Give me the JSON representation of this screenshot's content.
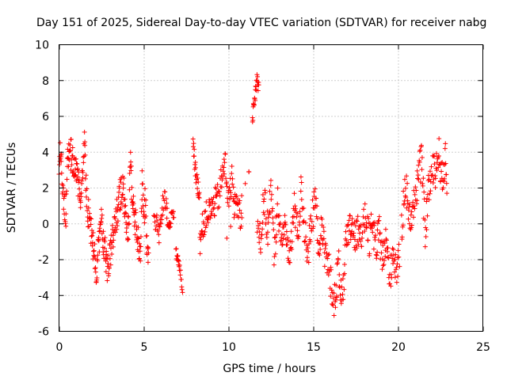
{
  "chart_data": {
    "type": "scatter",
    "title": "Day 151 of 2025, Sidereal Day-to-day VTEC variation (SDTVAR) for receiver nabg",
    "xlabel": "GPS time / hours",
    "ylabel": "SDTVAR / TECUs",
    "xlim": [
      0,
      25
    ],
    "ylim": [
      -6,
      10
    ],
    "xticks": [
      "0",
      "5",
      "10",
      "15",
      "20",
      "25"
    ],
    "xtick_values": [
      0,
      5,
      10,
      15,
      20,
      25
    ],
    "yticks": [
      "-6",
      "-4",
      "-2",
      "0",
      "2",
      "4",
      "6",
      "8",
      "10"
    ],
    "ytick_values": [
      -6,
      -4,
      -2,
      0,
      2,
      4,
      6,
      8,
      10
    ],
    "grid": true,
    "marker": "plus",
    "color": "#ff0000",
    "series": [
      {
        "name": "SDTVAR",
        "segments": [
          {
            "x": [
              0.0,
              0.1,
              0.2,
              0.3,
              0.4,
              0.5,
              0.6,
              0.7,
              0.8,
              0.9,
              1.0,
              1.1,
              1.2,
              1.3,
              1.4,
              1.5,
              1.6,
              1.7,
              1.8,
              1.9,
              2.0,
              2.1,
              2.2,
              2.3,
              2.4,
              2.5,
              2.6,
              2.7,
              2.8,
              2.9,
              3.0,
              3.1,
              3.2,
              3.3,
              3.4,
              3.5,
              3.6,
              3.7,
              3.8,
              3.9,
              4.0,
              4.1,
              4.2,
              4.3,
              4.4,
              4.5,
              4.6,
              4.7,
              4.8,
              4.9,
              5.0,
              5.1,
              5.2,
              5.3
            ],
            "y": [
              3.2,
              4.5,
              2.5,
              1.2,
              0.5,
              3.6,
              4.2,
              3.9,
              3.5,
              3.0,
              2.8,
              2.4,
              2.0,
              1.5,
              2.5,
              4.7,
              2.0,
              0.8,
              0.2,
              -0.5,
              -1.2,
              -2.0,
              -2.5,
              -1.5,
              -0.5,
              0.0,
              -0.8,
              -1.5,
              -2.2,
              -2.5,
              -1.8,
              -1.0,
              -0.6,
              -0.4,
              0.5,
              1.0,
              1.5,
              2.0,
              1.8,
              1.0,
              0.2,
              -0.5,
              3.5,
              2.0,
              1.0,
              0.0,
              -0.5,
              -1.0,
              -1.5,
              2.2,
              0.5,
              1.2,
              -1.5,
              -2.0
            ],
            "spread": 0.9
          },
          {
            "x": [
              5.6,
              5.9,
              6.2,
              6.5,
              6.8
            ],
            "y": [
              0.5,
              -0.5,
              1.5,
              -0.3,
              0.8
            ],
            "spread": 0.6
          },
          {
            "x": [
              6.9,
              7.0,
              7.1,
              7.3
            ],
            "y": [
              -1.5,
              -2.0,
              -2.4,
              -3.8
            ],
            "spread": 0.3
          },
          {
            "x": [
              7.9,
              8.0,
              8.1,
              8.2,
              8.3
            ],
            "y": [
              4.7,
              3.5,
              2.5,
              2.0,
              1.8
            ],
            "spread": 0.5
          },
          {
            "x": [
              8.3,
              8.5,
              8.7,
              9.0,
              9.2,
              9.4,
              9.6,
              9.8,
              10.0,
              10.2,
              10.4,
              10.6,
              10.8
            ],
            "y": [
              -1.0,
              0.0,
              0.5,
              0.8,
              1.2,
              1.5,
              2.5,
              3.5,
              1.2,
              2.5,
              1.0,
              0.8,
              0.2
            ],
            "spread": 0.8
          },
          {
            "x": [
              11.4,
              11.5,
              11.6,
              11.7,
              11.8
            ],
            "y": [
              6.0,
              6.5,
              7.5,
              8.2,
              7.4
            ],
            "spread": 0.4
          },
          {
            "x": [
              11.7,
              11.9,
              12.1,
              12.3,
              12.5,
              12.7,
              12.9,
              13.1,
              13.3,
              13.5,
              13.7,
              13.9,
              14.1,
              14.3,
              14.5,
              14.7,
              14.9,
              15.1,
              15.3,
              15.5,
              15.7,
              15.9,
              16.1,
              16.3,
              16.5,
              16.7,
              16.9,
              17.1,
              17.3,
              17.5,
              17.7,
              17.9,
              18.1,
              18.3,
              18.5,
              18.7,
              18.9,
              19.1,
              19.3,
              19.5,
              19.7,
              19.9,
              20.1
            ],
            "y": [
              0.5,
              -1.0,
              1.5,
              -0.5,
              2.0,
              -2.0,
              1.5,
              -1.5,
              0.5,
              -2.0,
              -1.0,
              1.0,
              -0.5,
              2.0,
              -0.5,
              -1.5,
              0.0,
              1.5,
              -1.0,
              -0.5,
              -1.5,
              -2.5,
              -3.5,
              -4.5,
              -2.0,
              -4.8,
              -1.5,
              -0.5,
              0.0,
              -1.0,
              0.0,
              -0.5,
              0.5,
              -1.0,
              0.0,
              -1.5,
              -0.5,
              -2.0,
              -1.0,
              -3.0,
              -1.5,
              -2.5,
              -2.0
            ],
            "spread": 1.0
          },
          {
            "x": [
              20.2,
              20.4,
              20.6,
              20.8,
              21.0,
              21.2,
              21.4,
              21.6,
              21.8,
              22.0,
              22.2,
              22.4,
              22.6,
              22.8,
              22.9
            ],
            "y": [
              -0.5,
              2.5,
              1.0,
              0.0,
              1.5,
              2.8,
              3.5,
              -0.5,
              2.0,
              2.8,
              3.0,
              4.0,
              2.5,
              3.5,
              1.8
            ],
            "spread": 1.0
          },
          {
            "x": [
              11.2,
              9.9
            ],
            "y": [
              2.9,
              -0.8
            ],
            "spread": 0.1
          }
        ]
      }
    ]
  }
}
